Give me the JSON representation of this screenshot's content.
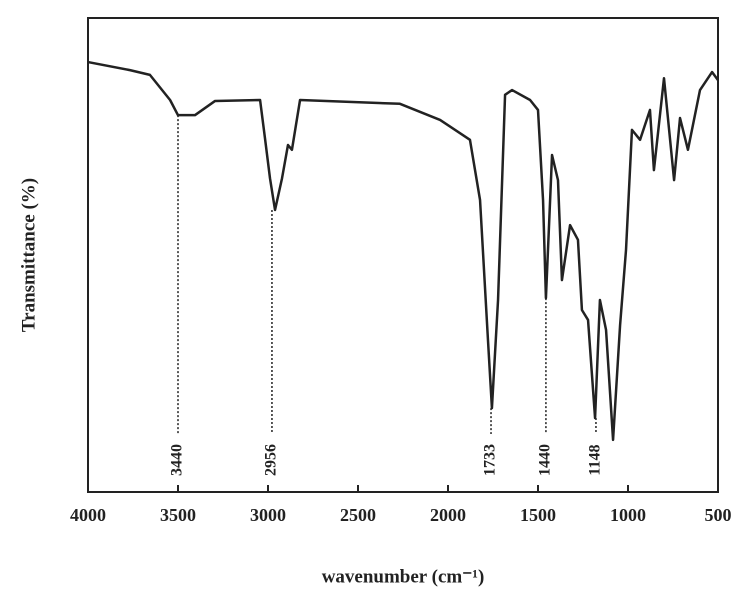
{
  "chart_data": {
    "type": "line",
    "xlabel": "wavenumber (cm⁻¹)",
    "ylabel": "Transmittance (%)",
    "x": [
      4000,
      3767,
      3656,
      3544,
      3500,
      3406,
      3294,
      3044,
      3017,
      2989,
      2961,
      2922,
      2889,
      2867,
      2822,
      2267,
      2044,
      1878,
      1822,
      1778,
      1756,
      1722,
      1683,
      1644,
      1544,
      1500,
      1472,
      1456,
      1422,
      1389,
      1367,
      1322,
      1278,
      1256,
      1222,
      1183,
      1156,
      1122,
      1083,
      1044,
      1011,
      978,
      933,
      878,
      856,
      800,
      744,
      711,
      667,
      600,
      533,
      500
    ],
    "series": [
      {
        "color": "#222222",
        "values": [
          90.7,
          89.0,
          88.0,
          82.7,
          79.5,
          79.5,
          82.5,
          82.7,
          74.7,
          66.2,
          59.5,
          66.2,
          73.2,
          72.2,
          82.7,
          81.9,
          78.5,
          74.3,
          61.6,
          32.1,
          17.7,
          40.5,
          83.8,
          84.8,
          82.7,
          80.6,
          61.6,
          40.9,
          71.1,
          65.8,
          44.7,
          56.3,
          53.2,
          38.4,
          36.3,
          15.6,
          40.5,
          34.2,
          11.0,
          35.2,
          51.1,
          76.4,
          74.3,
          80.6,
          67.9,
          87.3,
          65.8,
          78.9,
          72.2,
          84.8,
          88.6,
          86.9
        ]
      }
    ],
    "annotations": [
      {
        "label": "3440",
        "x": 3500,
        "y": 79.5
      },
      {
        "label": "2956",
        "x": 2978,
        "y": 59.5
      },
      {
        "label": "1733",
        "x": 1761,
        "y": 17.7
      },
      {
        "label": "1440",
        "x": 1456,
        "y": 40.9
      },
      {
        "label": "1148",
        "x": 1178,
        "y": 15.6
      }
    ],
    "xlim": [
      4000,
      500
    ],
    "ylim": [
      0,
      100
    ],
    "xticks": [
      4000,
      3500,
      3000,
      2500,
      2000,
      1500,
      1000,
      500
    ]
  }
}
